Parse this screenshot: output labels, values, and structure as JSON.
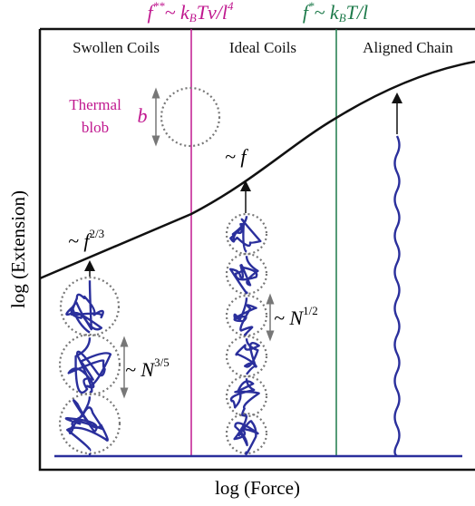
{
  "top_labels": {
    "f_double_star": [
      "f",
      "**",
      "~ k",
      "B",
      "Tv/l",
      "4"
    ],
    "f_star": [
      "f",
      "*",
      "~ k",
      "B",
      "T/l"
    ]
  },
  "regions": [
    "Swollen Coils",
    "Ideal Coils",
    "Aligned Chain"
  ],
  "thermal_blob": {
    "label": [
      "Thermal",
      "blob"
    ],
    "size": "b"
  },
  "scalings": {
    "force": [
      "~ ",
      "f"
    ],
    "swollen_slope": [
      "~ ",
      "f",
      "2/3"
    ],
    "ideal_size": [
      "~ ",
      "N",
      "1/2"
    ],
    "swollen_size": [
      "~ ",
      "N",
      "3/5"
    ]
  },
  "axes": {
    "y_label": "log (Extension)",
    "x_label": "log (Force)"
  }
}
